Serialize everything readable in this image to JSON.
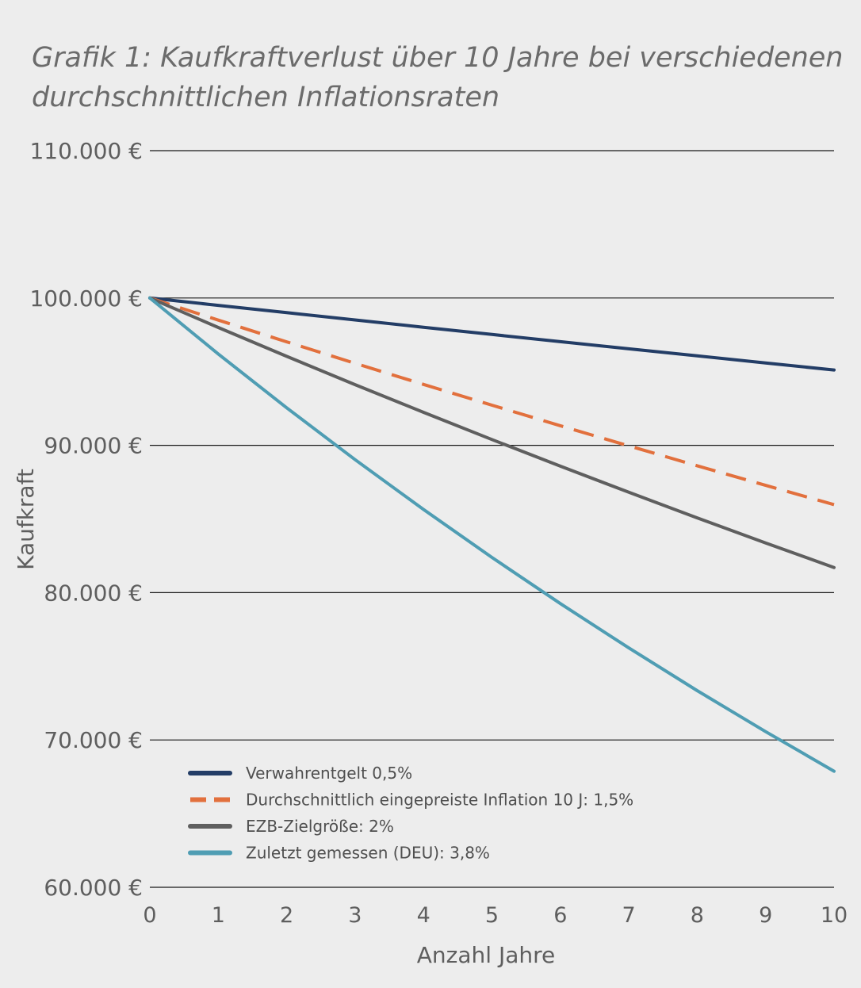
{
  "chart_data": {
    "type": "line",
    "title_lines": [
      "Grafik 1: Kaufkraftverlust über 10 Jahre bei verschiedenen",
      "durchschnittlichen Inflationsraten"
    ],
    "xlabel": "Anzahl Jahre",
    "ylabel": "Kaufkraft",
    "x": [
      0,
      1,
      2,
      3,
      4,
      5,
      6,
      7,
      8,
      9,
      10
    ],
    "x_tick_labels": [
      "0",
      "1",
      "2",
      "3",
      "4",
      "5",
      "6",
      "7",
      "8",
      "9",
      "10"
    ],
    "xlim": [
      0,
      10
    ],
    "ylim": [
      60000,
      110000
    ],
    "y_ticks": [
      60000,
      70000,
      80000,
      90000,
      100000,
      110000
    ],
    "y_tick_labels": [
      "60.000 €",
      "70.000 €",
      "80.000 €",
      "90.000 €",
      "100.000 €",
      "110.000 €"
    ],
    "grid": true,
    "legend_position": "bottom-left",
    "series": [
      {
        "name": "Verwahrentgelt 0,5%",
        "color": "#233d66",
        "dash": "solid",
        "values": [
          100000,
          99500,
          99003,
          98507,
          98015,
          97525,
          97037,
          96552,
          96069,
          95589,
          95111
        ]
      },
      {
        "name": "Durchschnittlich eingepreiste Inflation 10 J: 1,5%",
        "color": "#e2703d",
        "dash": "dashed",
        "values": [
          100000,
          98500,
          97023,
          95567,
          94133,
          92721,
          91331,
          89961,
          88611,
          87282,
          85973
        ]
      },
      {
        "name": "EZB-Zielgröße: 2%",
        "color": "#5f5f5f",
        "dash": "solid",
        "values": [
          100000,
          98000,
          96040,
          94119,
          92237,
          90392,
          88584,
          86813,
          85076,
          83375,
          81707
        ]
      },
      {
        "name": "Zuletzt gemessen (DEU): 3,8%",
        "color": "#4f9db3",
        "dash": "solid",
        "values": [
          100000,
          96200,
          92544,
          89027,
          85644,
          82390,
          79259,
          76247,
          73350,
          70563,
          67881
        ]
      }
    ]
  }
}
